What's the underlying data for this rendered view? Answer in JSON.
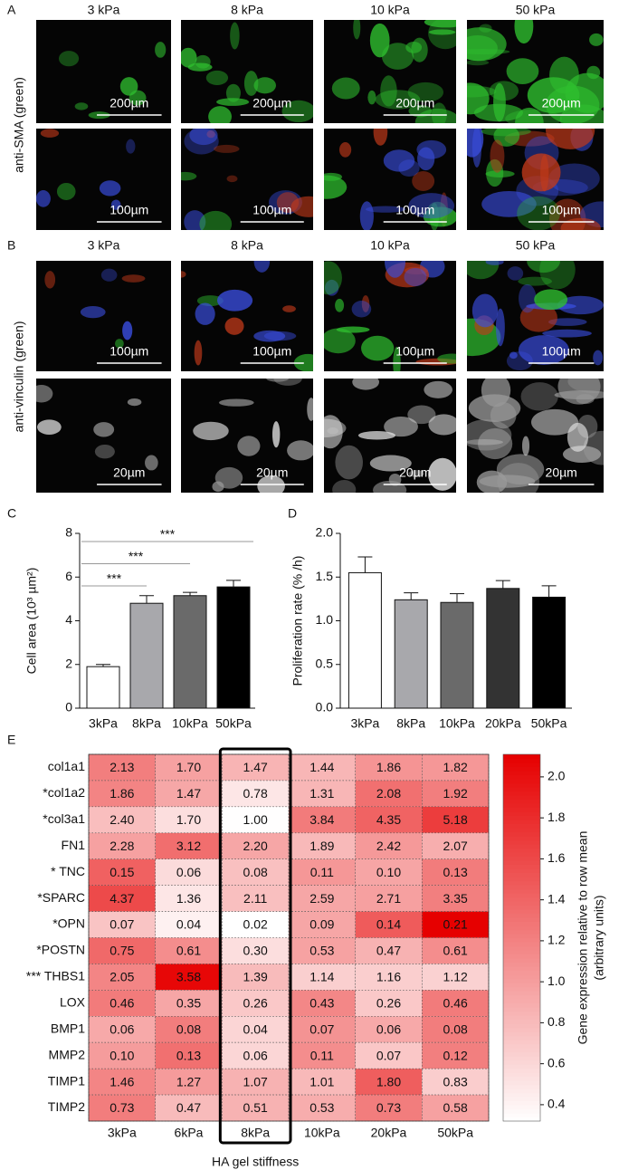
{
  "image_panels": [
    {
      "panel_label": "A",
      "column_labels": [
        "3 kPa",
        "8 kPa",
        "10 kPa",
        "50 kPa"
      ],
      "row_title": "anti-SMA (green)",
      "scale_bars": [
        "200µm",
        "100µm"
      ]
    },
    {
      "panel_label": "B",
      "column_labels": [
        "3 kPa",
        "8 kPa",
        "10 kPa",
        "50 kPa"
      ],
      "row_title": "anti-vinculin (green)",
      "scale_bars": [
        "100µm",
        "20µm"
      ]
    }
  ],
  "chart_data": [
    {
      "type": "bar",
      "panel_label": "C",
      "ylabel": "Cell area (10³ µm²)",
      "categories": [
        "3kPa",
        "8kPa",
        "10kPa",
        "50kPa"
      ],
      "values": [
        1.9,
        4.8,
        5.15,
        5.55
      ],
      "errors": [
        0.1,
        0.35,
        0.15,
        0.3
      ],
      "colors": [
        "#ffffff",
        "#a8a8ac",
        "#6a6a6a",
        "#000000"
      ],
      "ylim": [
        0,
        8
      ],
      "yticks": [
        0,
        2,
        4,
        6,
        8
      ],
      "significance": [
        {
          "from": 0,
          "to": 1,
          "label": "***"
        },
        {
          "from": 0,
          "to": 2,
          "label": "***"
        },
        {
          "from": 0,
          "to": 3,
          "label": "***"
        }
      ]
    },
    {
      "type": "bar",
      "panel_label": "D",
      "ylabel": "Proliferation rate (% /h)",
      "categories": [
        "3kPa",
        "8kPa",
        "10kPa",
        "20kPa",
        "50kPa"
      ],
      "values": [
        1.55,
        1.24,
        1.21,
        1.37,
        1.27
      ],
      "errors": [
        0.18,
        0.08,
        0.1,
        0.09,
        0.13
      ],
      "colors": [
        "#ffffff",
        "#a8a8ac",
        "#6a6a6a",
        "#333333",
        "#000000"
      ],
      "ylim": [
        0,
        2
      ],
      "yticks": [
        {
          "value": 0,
          "label": "0.0"
        },
        0.5,
        {
          "value": 1,
          "label": "1.0"
        },
        1.5,
        {
          "value": 2,
          "label": "2.0"
        }
      ]
    },
    {
      "type": "heatmap",
      "panel_label": "E",
      "xlabel": "HA gel stiffness",
      "columns": [
        "3kPa",
        "6kPa",
        "8kPa",
        "10kPa",
        "20kPa",
        "50kPa"
      ],
      "rows": [
        "col1a1",
        "*col1a2",
        "*col3a1",
        "FN1",
        "* TNC",
        "*SPARC",
        "*OPN",
        "*POSTN",
        "*** THBS1",
        "LOX",
        "BMP1",
        "MMP2",
        "TIMP1",
        "TIMP2"
      ],
      "values": [
        [
          2.13,
          1.7,
          1.47,
          1.44,
          1.86,
          1.82
        ],
        [
          1.86,
          1.47,
          0.78,
          1.31,
          2.08,
          1.92
        ],
        [
          2.4,
          1.7,
          1.0,
          3.84,
          4.35,
          5.18
        ],
        [
          2.28,
          3.12,
          2.2,
          1.89,
          2.42,
          2.07
        ],
        [
          0.15,
          0.06,
          0.08,
          0.11,
          0.1,
          0.13
        ],
        [
          4.37,
          1.36,
          2.11,
          2.59,
          2.71,
          3.35
        ],
        [
          0.07,
          0.04,
          0.02,
          0.09,
          0.14,
          0.21
        ],
        [
          0.75,
          0.61,
          0.3,
          0.53,
          0.47,
          0.61
        ],
        [
          2.05,
          3.58,
          1.39,
          1.14,
          1.16,
          1.12
        ],
        [
          0.46,
          0.35,
          0.26,
          0.43,
          0.26,
          0.46
        ],
        [
          0.06,
          0.08,
          0.04,
          0.07,
          0.06,
          0.08
        ],
        [
          0.1,
          0.13,
          0.06,
          0.11,
          0.07,
          0.12
        ],
        [
          1.46,
          1.27,
          1.07,
          1.01,
          1.8,
          0.83
        ],
        [
          0.73,
          0.47,
          0.51,
          0.53,
          0.73,
          0.58
        ]
      ],
      "value_labels": [
        [
          "2.13",
          "1.70",
          "1.47",
          "1.44",
          "1.86",
          "1.82"
        ],
        [
          "1.86",
          "1.47",
          "0.78",
          "1.31",
          "2.08",
          "1.92"
        ],
        [
          "2.40",
          "1.70",
          "1.00",
          "3.84",
          "4.35",
          "5.18"
        ],
        [
          "2.28",
          "3.12",
          "2.20",
          "1.89",
          "2.42",
          "2.07"
        ],
        [
          "0.15",
          "0.06",
          "0.08",
          "0.11",
          "0.10",
          "0.13"
        ],
        [
          "4.37",
          "1.36",
          "2.11",
          "2.59",
          "2.71",
          "3.35"
        ],
        [
          "0.07",
          "0.04",
          "0.02",
          "0.09",
          "0.14",
          "0.21"
        ],
        [
          "0.75",
          "0.61",
          "0.30",
          "0.53",
          "0.47",
          "0.61"
        ],
        [
          "2.05",
          "3.58",
          "1.39",
          "1.14",
          "1.16",
          "1.12"
        ],
        [
          "0.46",
          "0.35",
          "0.26",
          "0.43",
          "0.26",
          "0.46"
        ],
        [
          "0.06",
          "0.08",
          "0.04",
          "0.07",
          "0.06",
          "0.08"
        ],
        [
          "0.10",
          "0.13",
          "0.06",
          "0.11",
          "0.07",
          "0.12"
        ],
        [
          "1.46",
          "1.27",
          "1.07",
          "1.01",
          "1.80",
          "0.83"
        ],
        [
          "0.73",
          "0.47",
          "0.51",
          "0.53",
          "0.73",
          "0.58"
        ]
      ],
      "color_low": "#ffffff",
      "color_high": "#e60000",
      "clim": [
        0.32,
        2.11
      ],
      "cticks": [
        0.4,
        0.6,
        0.8,
        {
          "value": 1,
          "label": "1.0"
        },
        1.2,
        1.4,
        1.6,
        1.8,
        {
          "value": 2,
          "label": "2.0"
        }
      ],
      "colorbar_label": [
        "Gene expression relative to row mean",
        "(arbitrary units)"
      ],
      "highlight_column": 2
    }
  ]
}
